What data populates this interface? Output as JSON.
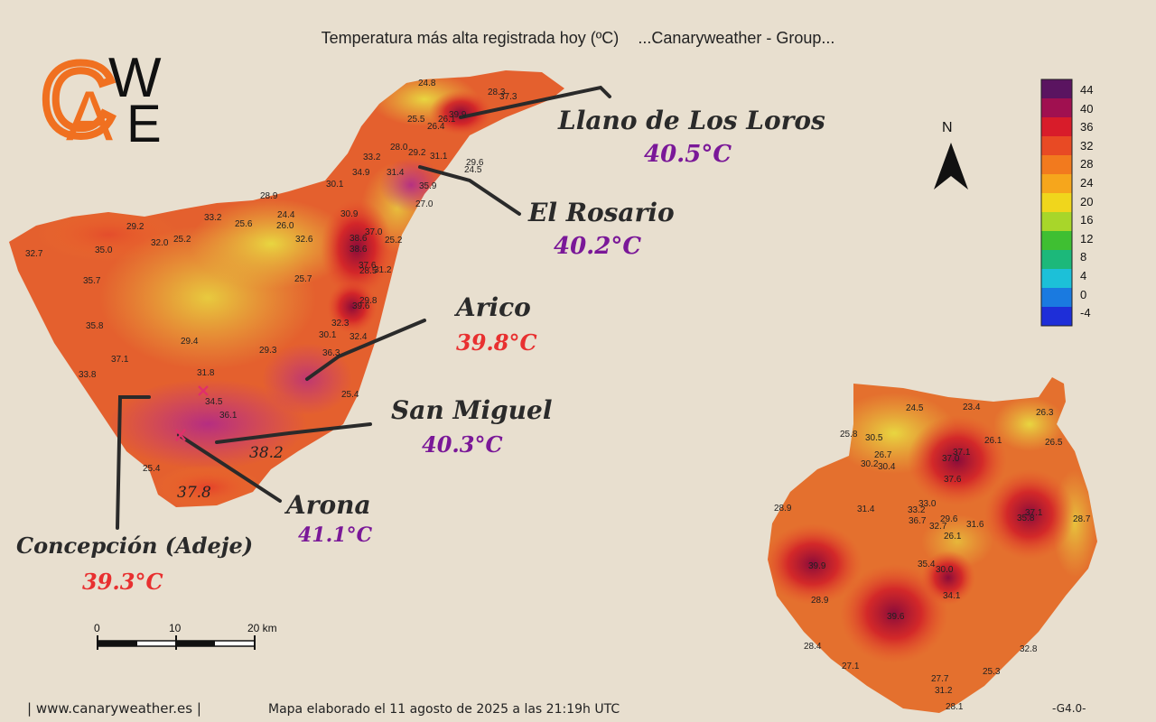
{
  "title": {
    "main": "Temperatura más alta registrada hoy (ºC)",
    "group": "...Canaryweather - Group..."
  },
  "logo": {
    "letters": "CAWE"
  },
  "compass": {
    "label": "N"
  },
  "legend": {
    "ticks": [
      "44",
      "40",
      "36",
      "32",
      "28",
      "24",
      "20",
      "16",
      "12",
      "8",
      "4",
      "0",
      "-4"
    ],
    "colors": [
      "#5a1460",
      "#a01050",
      "#d81c2a",
      "#e84a24",
      "#f27a1e",
      "#f6a61c",
      "#f0d61c",
      "#a8d62a",
      "#3fbf32",
      "#1cb87a",
      "#1cc0d8",
      "#1a7ae0",
      "#1e2ed8"
    ]
  },
  "callouts": [
    {
      "name": "Llano de Los Loros",
      "temp": "40.5°C",
      "temp_color": "#7a1898"
    },
    {
      "name": "El Rosario",
      "temp": "40.2°C",
      "temp_color": "#7a1898"
    },
    {
      "name": "Arico",
      "temp": "39.8°C",
      "temp_color": "#e83030"
    },
    {
      "name": "San Miguel",
      "temp": "40.3°C",
      "temp_color": "#7a1898"
    },
    {
      "name": "Arona",
      "temp": "41.1°C",
      "temp_color": "#7a1898"
    },
    {
      "name": "Concepción (Adeje)",
      "temp": "39.3°C",
      "temp_color": "#e83030"
    }
  ],
  "scale_bar": {
    "labels": [
      "0",
      "10",
      "20 km"
    ]
  },
  "footer": {
    "site": "| www.canaryweather.es |",
    "made": "Mapa elaborado el 11 agosto de 2025 a las 21:19h UTC",
    "code": "-G4.0-"
  },
  "tenerife_stations": [
    "24.8",
    "28.3",
    "37.3",
    "25.5",
    "26.1",
    "26.4",
    "39.9",
    "28.0",
    "29.2",
    "31.1",
    "33.2",
    "29.6",
    "34.9",
    "31.4",
    "24.5",
    "35.9",
    "30.1",
    "28.9",
    "27.0",
    "33.2",
    "25.6",
    "24.4",
    "30.9",
    "29.2",
    "32.0",
    "25.2",
    "26.0",
    "37.0",
    "32.6",
    "38.6",
    "25.2",
    "32.7",
    "35.0",
    "38.6",
    "37.6",
    "28.5",
    "31.2",
    "35.7",
    "25.7",
    "39.6",
    "29.8",
    "35.8",
    "32.3",
    "30.1",
    "32.4",
    "29.4",
    "29.3",
    "36.3",
    "37.1",
    "31.8",
    "33.8",
    "25.4",
    "34.5",
    "36.1",
    "25.4",
    "38.2",
    "37.8"
  ],
  "gran_canaria_stations": [
    "24.5",
    "23.4",
    "26.3",
    "25.8",
    "30.5",
    "26.1",
    "26.5",
    "37.1",
    "26.7",
    "37.0",
    "30.2",
    "30.4",
    "37.6",
    "33.0",
    "37.1",
    "28.9",
    "31.4",
    "33.2",
    "36.7",
    "29.6",
    "32.7",
    "31.6",
    "35.8",
    "28.7",
    "26.1",
    "39.9",
    "35.4",
    "30.0",
    "28.9",
    "34.1",
    "39.6",
    "28.4",
    "32.8",
    "27.1",
    "25.3",
    "27.7",
    "31.2",
    "28.1"
  ]
}
